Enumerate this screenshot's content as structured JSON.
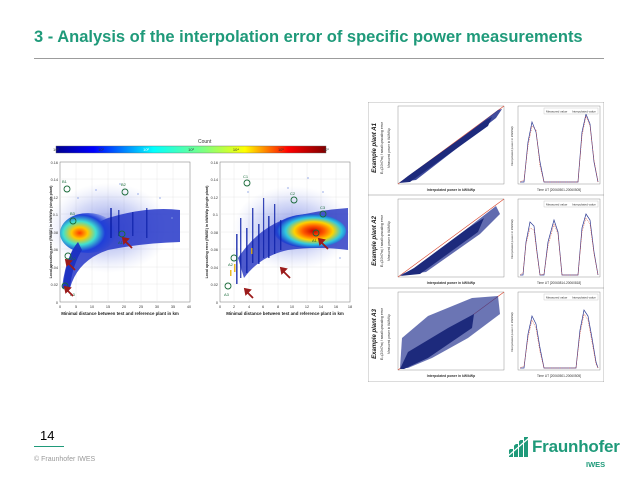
{
  "slide": {
    "title": "3 - Analysis of the interpolation error of specific power measurements",
    "number": "14",
    "copyright": "© Fraunhofer IWES"
  },
  "logo": {
    "name": "Fraunhofer",
    "sub": "IWES"
  },
  "colorbar": {
    "label": "Count",
    "ticks": [
      "10⁰",
      "10¹",
      "10²",
      "10³",
      "10⁴",
      "10⁵",
      "10⁶"
    ]
  },
  "heatmaps": {
    "ylabel": "Local upscaling error (RMSE) in kW/kWp (single plant)",
    "xlabel": "Minimal distance between test and reference plant in km",
    "left_xticks": [
      "0",
      "5",
      "10",
      "15",
      "20",
      "25",
      "30",
      "35",
      "40"
    ],
    "left_yticks": [
      "0.16",
      "0.14",
      "0.12",
      "0.1",
      "0.08",
      "0.06",
      "0.04",
      "0.02",
      "0"
    ],
    "right_xticks": [
      "0",
      "2",
      "4",
      "6",
      "8",
      "10",
      "12",
      "14",
      "16",
      "18"
    ],
    "right_yticks": [
      "0.16",
      "0.14",
      "0.12",
      "0.1",
      "0.08",
      "0.06",
      "0.04",
      "0.02",
      "0"
    ],
    "left_markers": [
      "B1",
      "B2",
      "B3",
      "A1",
      "A2",
      "A3"
    ],
    "right_markers": [
      "C1",
      "C2",
      "C3",
      "A1",
      "A2",
      "A3"
    ]
  },
  "examples": [
    {
      "label": "Example plant A1",
      "sublabel": "Eₚₗ(20h/7m) / small upscaling error",
      "scatter_xlabel": "Interpolated power in kW/kWp",
      "scatter_ylabel": "Measured power in kW/kWp",
      "ts_xlabel": "Time UT [20060501-20060505]",
      "ts_ylabel": "Interpolated power in kW/kWp",
      "legend": [
        "Measured value",
        "Interpolated value"
      ]
    },
    {
      "label": "Example plant A2",
      "sublabel": "Eₚₗ(20h/7m) / small upscaling error",
      "scatter_xlabel": "Interpolated power in kW/kWp",
      "scatter_ylabel": "Measured power in kW/kWp",
      "ts_xlabel": "Time UT [20060814-20060818]",
      "ts_ylabel": "Interpolated power in kW/kWp",
      "legend": [
        "Measured value",
        "Interpolated value"
      ]
    },
    {
      "label": "Example plant A3",
      "sublabel": "Eₚₗ(20h/7m) / small upscaling error",
      "scatter_xlabel": "Interpolated power in kW/kWp",
      "scatter_ylabel": "Measured power in kW/kWp",
      "ts_xlabel": "Time UT [20060501-20060505]",
      "ts_ylabel": "Interpolated power in kW/kWp",
      "legend": [
        "Measured value",
        "Interpolated value"
      ]
    }
  ],
  "colors": {
    "accent": "#1f9a7a",
    "scatter": "#2c3a94",
    "reference_line": "#d9432a",
    "arrow": "#9b1b1b"
  }
}
